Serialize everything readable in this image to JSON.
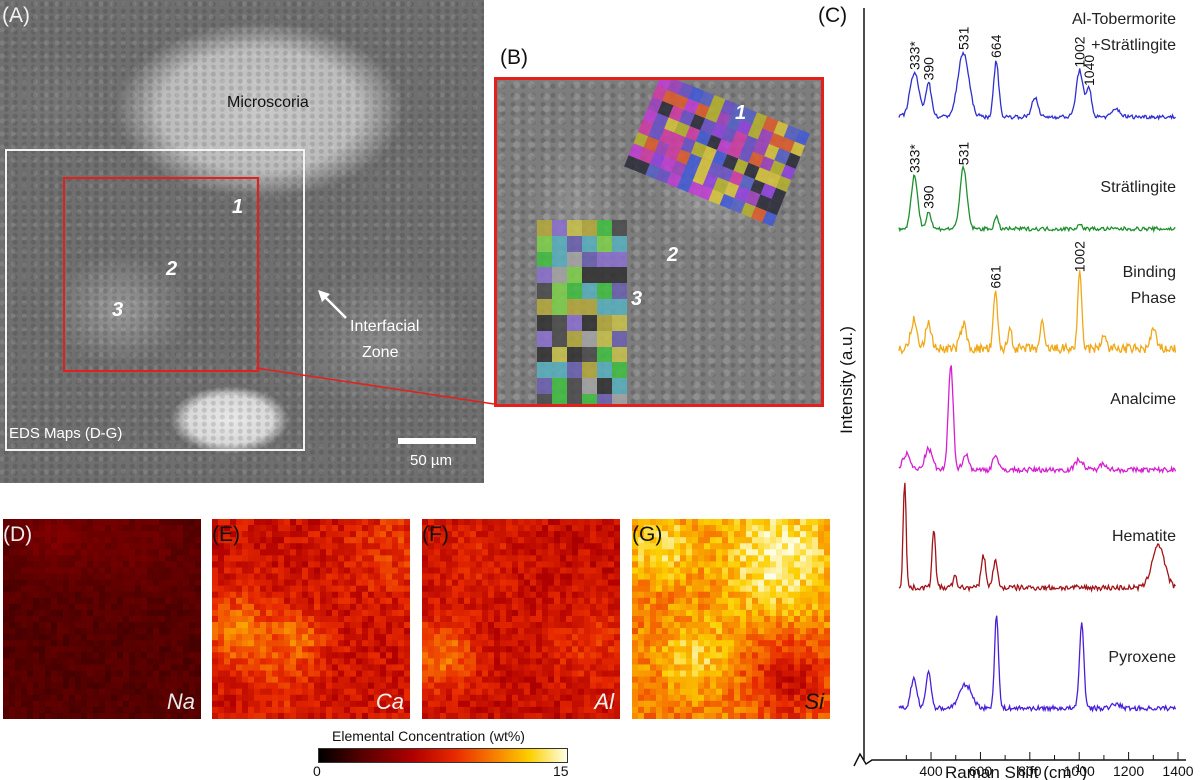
{
  "panels": {
    "a": {
      "label": "(A)",
      "microscoria_label": "Microscoria",
      "interfacial_label_1": "Interfacial",
      "interfacial_label_2": "Zone",
      "eds_box_label": "EDS Maps (D-G)",
      "scale_label": "50 µm",
      "points": [
        "1",
        "2",
        "3"
      ]
    },
    "b": {
      "label": "(B)",
      "points": [
        "1",
        "2",
        "3"
      ]
    },
    "c": {
      "label": "(C)"
    },
    "d": {
      "label": "(D)",
      "element": "Na"
    },
    "e": {
      "label": "(E)",
      "element": "Ca"
    },
    "f": {
      "label": "(F)",
      "element": "Al"
    },
    "g": {
      "label": "(G)",
      "element": "Si"
    }
  },
  "colorbar": {
    "title": "Elemental Concentration (wt%)",
    "min_label": "0",
    "max_label": "15"
  },
  "chart_data": {
    "type": "line",
    "xlabel": "Raman Shift (cm",
    "xlabel_sup": "-1",
    "xlabel_end": ")",
    "ylabel": "Intensity (a.u.)",
    "xlim": [
      250,
      1400
    ],
    "xticks": [
      400,
      600,
      800,
      1000,
      1200,
      1400
    ],
    "series": [
      {
        "name": "Al-Tobermorite",
        "name2": "+Strätlingite",
        "color": "#2f2fd0",
        "peaks": [
          {
            "x": 333,
            "h": 0.55,
            "w": 18
          },
          {
            "x": 390,
            "h": 0.42,
            "w": 12
          },
          {
            "x": 531,
            "h": 0.8,
            "w": 22
          },
          {
            "x": 664,
            "h": 0.7,
            "w": 10
          },
          {
            "x": 820,
            "h": 0.25,
            "w": 12
          },
          {
            "x": 1002,
            "h": 0.58,
            "w": 14
          },
          {
            "x": 1040,
            "h": 0.35,
            "w": 10
          },
          {
            "x": 1150,
            "h": 0.1,
            "w": 15
          }
        ],
        "annotations": [
          {
            "x": 333,
            "text": "333*"
          },
          {
            "x": 390,
            "text": "390"
          },
          {
            "x": 531,
            "text": "531"
          },
          {
            "x": 664,
            "text": "664"
          },
          {
            "x": 1002,
            "text": "1002"
          },
          {
            "x": 1040,
            "text": "1040"
          }
        ]
      },
      {
        "name": "Strätlingite",
        "color": "#1f8f2f",
        "peaks": [
          {
            "x": 333,
            "h": 0.68,
            "w": 13
          },
          {
            "x": 390,
            "h": 0.22,
            "w": 10
          },
          {
            "x": 531,
            "h": 0.78,
            "w": 14
          },
          {
            "x": 664,
            "h": 0.15,
            "w": 8
          },
          {
            "x": 1002,
            "h": 0.05,
            "w": 10
          }
        ],
        "annotations": [
          {
            "x": 333,
            "text": "333*"
          },
          {
            "x": 390,
            "text": "390"
          },
          {
            "x": 531,
            "text": "531"
          }
        ]
      },
      {
        "name": "Binding",
        "name2": "Phase",
        "color": "#f0a818",
        "peaks": [
          {
            "x": 330,
            "h": 0.35,
            "w": 12
          },
          {
            "x": 390,
            "h": 0.3,
            "w": 12
          },
          {
            "x": 531,
            "h": 0.3,
            "w": 12
          },
          {
            "x": 661,
            "h": 0.7,
            "w": 8
          },
          {
            "x": 720,
            "h": 0.25,
            "w": 8
          },
          {
            "x": 850,
            "h": 0.3,
            "w": 8
          },
          {
            "x": 1002,
            "h": 0.9,
            "w": 8
          },
          {
            "x": 1100,
            "h": 0.2,
            "w": 8
          },
          {
            "x": 1300,
            "h": 0.25,
            "w": 10
          }
        ],
        "noise": 0.12,
        "annotations": [
          {
            "x": 661,
            "text": "661"
          },
          {
            "x": 1002,
            "text": "1002"
          }
        ]
      },
      {
        "name": "Analcime",
        "color": "#d61fd0",
        "peaks": [
          {
            "x": 300,
            "h": 0.15,
            "w": 15
          },
          {
            "x": 390,
            "h": 0.2,
            "w": 15
          },
          {
            "x": 480,
            "h": 1.0,
            "w": 10
          },
          {
            "x": 540,
            "h": 0.15,
            "w": 12
          },
          {
            "x": 660,
            "h": 0.15,
            "w": 10
          },
          {
            "x": 1000,
            "h": 0.1,
            "w": 15
          },
          {
            "x": 1100,
            "h": 0.06,
            "w": 15
          }
        ],
        "annotations": []
      },
      {
        "name": "Hematite",
        "color": "#a0141a",
        "peaks": [
          {
            "x": 293,
            "h": 1.0,
            "w": 6
          },
          {
            "x": 411,
            "h": 0.55,
            "w": 7
          },
          {
            "x": 497,
            "h": 0.1,
            "w": 8
          },
          {
            "x": 612,
            "h": 0.3,
            "w": 9
          },
          {
            "x": 660,
            "h": 0.25,
            "w": 9
          },
          {
            "x": 1320,
            "h": 0.4,
            "w": 25
          }
        ],
        "annotations": []
      },
      {
        "name": "Pyroxene",
        "color": "#4a1fd8",
        "peaks": [
          {
            "x": 330,
            "h": 0.32,
            "w": 12
          },
          {
            "x": 390,
            "h": 0.4,
            "w": 10
          },
          {
            "x": 540,
            "h": 0.25,
            "w": 25
          },
          {
            "x": 665,
            "h": 1.0,
            "w": 8
          },
          {
            "x": 1010,
            "h": 0.9,
            "w": 9
          },
          {
            "x": 1150,
            "h": 0.05,
            "w": 15
          }
        ],
        "annotations": []
      }
    ]
  }
}
